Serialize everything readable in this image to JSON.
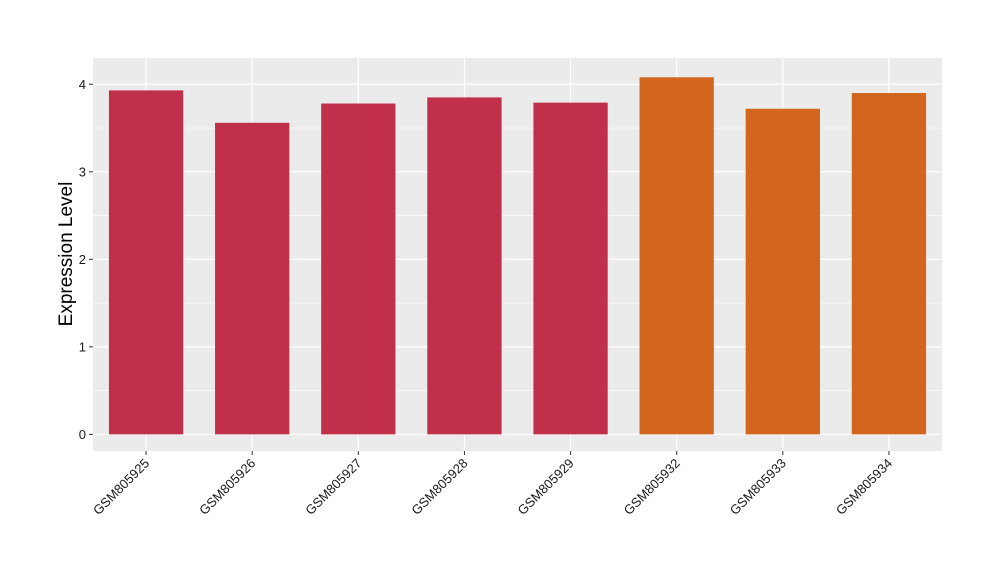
{
  "chart_data": {
    "type": "bar",
    "title": "",
    "xlabel": "",
    "ylabel": "Expression Level",
    "categories": [
      "GSM805925",
      "GSM805926",
      "GSM805927",
      "GSM805928",
      "GSM805929",
      "GSM805932",
      "GSM805933",
      "GSM805934"
    ],
    "values": [
      3.93,
      3.56,
      3.78,
      3.85,
      3.79,
      4.08,
      3.72,
      3.9
    ],
    "bar_colors": [
      "#c0304a",
      "#c0304a",
      "#c0304a",
      "#c0304a",
      "#c0304a",
      "#d2661f",
      "#d2661f",
      "#d2661f"
    ],
    "ylim": [
      -0.19,
      4.3
    ],
    "yticks": [
      0,
      1,
      2,
      3,
      4
    ],
    "grid": true,
    "panel_background": "#ebebeb",
    "grid_color": "#ffffff",
    "legend": "none"
  }
}
